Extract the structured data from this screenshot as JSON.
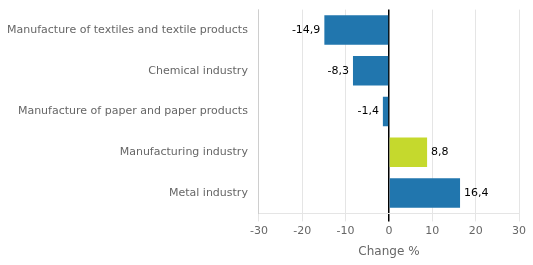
{
  "chart_data": {
    "type": "bar",
    "orientation": "horizontal",
    "categories": [
      "Manufacture of textiles and textile products",
      "Chemical industry",
      "Manufacture of paper and paper products",
      "Manufacturing industry",
      "Metal industry"
    ],
    "values": [
      -14.9,
      -8.3,
      -1.4,
      8.8,
      16.4
    ],
    "value_labels": [
      "-14,9",
      "-8,3",
      "-1,4",
      "8,8",
      "16,4"
    ],
    "data_labels": true,
    "colors": [
      "#2176ae",
      "#2176ae",
      "#2176ae",
      "#c5d92d",
      "#2176ae"
    ],
    "xlabel": "Change %",
    "xlim": [
      -30,
      30
    ],
    "xticks": [
      -30,
      -20,
      -10,
      0,
      10,
      20,
      30
    ],
    "grid": true
  }
}
